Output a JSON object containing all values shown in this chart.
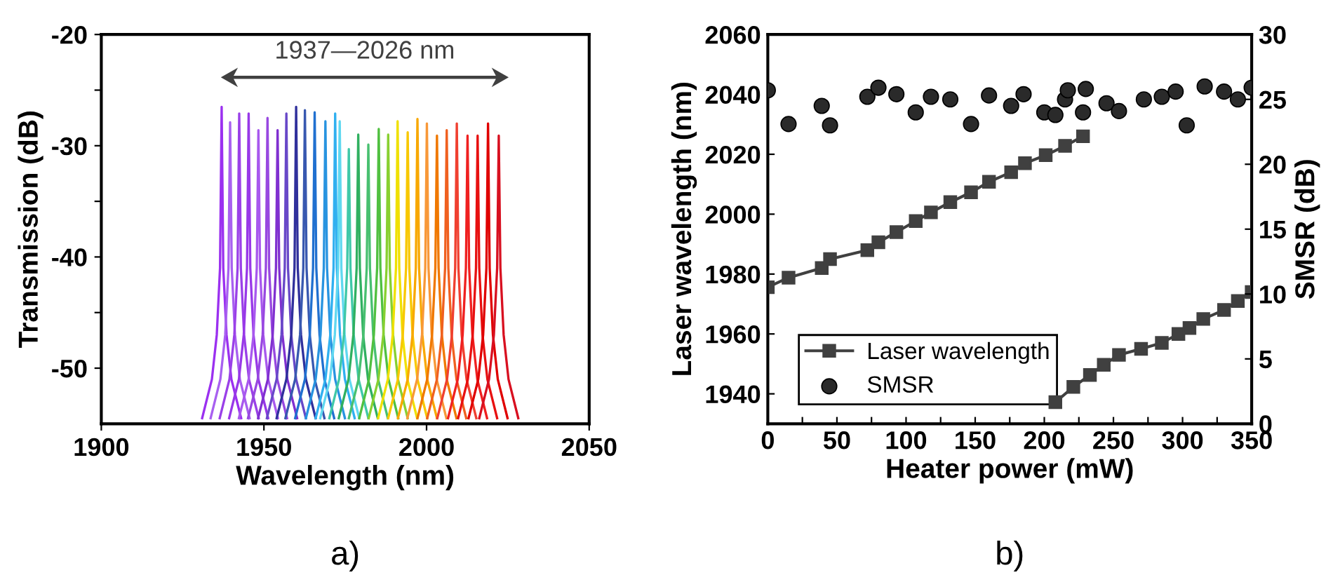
{
  "chart_data": [
    {
      "type": "line",
      "xlabel": "Wavelength (nm)",
      "ylabel": "Transmission (dB)",
      "xlim": [
        1900,
        2050
      ],
      "xticks": [
        1900,
        1950,
        2000,
        2050
      ],
      "ylim": [
        -55,
        -20
      ],
      "yticks": [
        -50,
        {
          "value": -45,
          "label": null
        },
        -40,
        {
          "value": -35,
          "label": null
        },
        -30,
        {
          "value": -25,
          "label": null
        },
        -20
      ],
      "annotations": [
        "1937—2026 nm",
        "a)"
      ],
      "series": [
        {
          "color": "#9b30f0",
          "x": [
            1931,
            1934,
            1935.5,
            1936.5,
            1937,
            1937.5,
            1938.5,
            1940,
            1943
          ],
          "values": [
            -54.5,
            -51,
            -47,
            -41,
            -26.5,
            -41,
            -47,
            -51,
            -54.5
          ]
        },
        {
          "color": "#a860f0",
          "x": [
            1933.6,
            1936.6,
            1938.1,
            1939.1,
            1939.6,
            1940.1,
            1941.1,
            1942.6,
            1945.6
          ],
          "values": [
            -54.5,
            -51,
            -47,
            -41,
            -27.9,
            -41,
            -47,
            -51,
            -54.5
          ]
        },
        {
          "color": "#9a40e8",
          "x": [
            1936.4,
            1939.4,
            1940.9,
            1941.9,
            1942.4,
            1942.9,
            1943.9,
            1945.4,
            1948.4
          ],
          "values": [
            -54.5,
            -51,
            -47,
            -41,
            -27.1,
            -41,
            -47,
            -51,
            -54.5
          ]
        },
        {
          "color": "#9838e8",
          "x": [
            1939.3,
            1942.3,
            1943.8,
            1944.8,
            1945.3,
            1945.8,
            1946.8,
            1948.3,
            1951.3
          ],
          "values": [
            -54.5,
            -51,
            -47,
            -41,
            -27.1,
            -41,
            -47,
            -51,
            -54.5
          ]
        },
        {
          "color": "#a858ee",
          "x": [
            1942.3,
            1945.3,
            1946.8,
            1947.8,
            1948.3,
            1948.8,
            1949.8,
            1951.3,
            1954.3
          ],
          "values": [
            -54.5,
            -51,
            -47,
            -41,
            -28.6,
            -41,
            -47,
            -51,
            -54.5
          ]
        },
        {
          "color": "#9848e0",
          "x": [
            1945.1,
            1948.1,
            1949.6,
            1950.6,
            1951.1,
            1951.6,
            1952.6,
            1954.1,
            1957.1
          ],
          "values": [
            -54.5,
            -51,
            -47,
            -41,
            -27.5,
            -41,
            -47,
            -51,
            -54.5
          ]
        },
        {
          "color": "#8030d0",
          "x": [
            1948.2,
            1951.2,
            1952.7,
            1953.7,
            1954.2,
            1954.7,
            1955.7,
            1957.2,
            1960.2
          ],
          "values": [
            -54.5,
            -51,
            -47,
            -41,
            -28.6,
            -41,
            -47,
            -51,
            -54.5
          ]
        },
        {
          "color": "#6848c8",
          "x": [
            1950.9,
            1953.9,
            1955.4,
            1956.4,
            1956.9,
            1957.4,
            1958.4,
            1959.9,
            1962.9
          ],
          "values": [
            -54.5,
            -51,
            -47,
            -41,
            -27.1,
            -41,
            -47,
            -51,
            -54.5
          ]
        },
        {
          "color": "#30309c",
          "x": [
            1953.9,
            1956.9,
            1958.4,
            1959.4,
            1959.9,
            1960.4,
            1961.4,
            1962.9,
            1965.9
          ],
          "values": [
            -54.5,
            -51,
            -47,
            -41,
            -26.5,
            -41,
            -47,
            -51,
            -54.5
          ]
        },
        {
          "color": "#3858b0",
          "x": [
            1956.6,
            1959.6,
            1961.1,
            1962.1,
            1962.6,
            1963.1,
            1964.1,
            1965.6,
            1968.6
          ],
          "values": [
            -54.5,
            -51,
            -47,
            -41,
            -26.8,
            -41,
            -47,
            -51,
            -54.5
          ]
        },
        {
          "color": "#2070d0",
          "x": [
            1959.6,
            1962.6,
            1964.1,
            1965.1,
            1965.6,
            1966.1,
            1967.1,
            1968.6,
            1971.6
          ],
          "values": [
            -54.5,
            -51,
            -47,
            -41,
            -27.0,
            -41,
            -47,
            -51,
            -54.5
          ]
        },
        {
          "color": "#2894e0",
          "x": [
            1962.9,
            1965.9,
            1967.4,
            1968.4,
            1968.9,
            1969.4,
            1970.4,
            1971.9,
            1974.9
          ],
          "values": [
            -54.5,
            -51,
            -47,
            -41,
            -27.8,
            -41,
            -47,
            -51,
            -54.5
          ]
        },
        {
          "color": "#30b0f0",
          "x": [
            1965.9,
            1968.9,
            1970.4,
            1971.4,
            1971.9,
            1972.4,
            1973.4,
            1974.9,
            1977.9
          ],
          "values": [
            -54.5,
            -51,
            -47,
            -41,
            -27.1,
            -41,
            -47,
            -51,
            -54.5
          ]
        },
        {
          "color": "#60d8f0",
          "x": [
            1967.3,
            1970.3,
            1971.8,
            1972.8,
            1973.3,
            1973.8,
            1974.8,
            1976.3,
            1979.3
          ],
          "values": [
            -54.5,
            -51,
            -47,
            -41,
            -27.8,
            -41,
            -47,
            -51,
            -54.5
          ]
        },
        {
          "color": "#40c8a8",
          "x": [
            1970.1,
            1973.1,
            1974.6,
            1975.6,
            1976.1,
            1976.6,
            1977.6,
            1979.1,
            1982.1
          ],
          "values": [
            -54.5,
            -51,
            -47,
            -41,
            -30.3,
            -41,
            -47,
            -51,
            -54.5
          ]
        },
        {
          "color": "#30b060",
          "x": [
            1973,
            1976,
            1977.5,
            1978.5,
            1979,
            1979.5,
            1980.5,
            1982,
            1985
          ],
          "values": [
            -54.5,
            -51,
            -47,
            -41,
            -29.0,
            -41,
            -47,
            -51,
            -54.5
          ]
        },
        {
          "color": "#48c070",
          "x": [
            1976.1,
            1979.1,
            1980.6,
            1981.6,
            1982.1,
            1982.6,
            1983.6,
            1985.1,
            1988.1
          ],
          "values": [
            -54.5,
            -51,
            -47,
            -41,
            -29.9,
            -41,
            -47,
            -51,
            -54.5
          ]
        },
        {
          "color": "#50c040",
          "x": [
            1979.3,
            1982.3,
            1983.8,
            1984.8,
            1985.3,
            1985.8,
            1986.8,
            1988.3,
            1991.3
          ],
          "values": [
            -54.5,
            -51,
            -47,
            -41,
            -28.5,
            -41,
            -47,
            -51,
            -54.5
          ]
        },
        {
          "color": "#88d030",
          "x": [
            1982.2,
            1985.2,
            1986.7,
            1987.7,
            1988.2,
            1988.7,
            1989.7,
            1991.2,
            1994.2
          ],
          "values": [
            -54.5,
            -51,
            -47,
            -41,
            -29.0,
            -41,
            -47,
            -51,
            -54.5
          ]
        },
        {
          "color": "#f0e000",
          "x": [
            1985.1,
            1988.1,
            1989.6,
            1990.6,
            1991.1,
            1991.6,
            1992.6,
            1994.1,
            1997.1
          ],
          "values": [
            -54.5,
            -51,
            -47,
            -41,
            -27.8,
            -41,
            -47,
            -51,
            -54.5
          ]
        },
        {
          "color": "#f8c800",
          "x": [
            1988.2,
            1991.2,
            1992.7,
            1993.7,
            1994.2,
            1994.7,
            1995.7,
            1997.2,
            2000.2
          ],
          "values": [
            -54.5,
            -51,
            -47,
            -41,
            -28.8,
            -41,
            -47,
            -51,
            -54.5
          ]
        },
        {
          "color": "#f8a800",
          "x": [
            1991.2,
            1994.2,
            1995.7,
            1996.7,
            1997.2,
            1997.7,
            1998.7,
            2000.2,
            2003.2
          ],
          "values": [
            -54.5,
            -51,
            -47,
            -41,
            -27.6,
            -41,
            -47,
            -51,
            -54.5
          ]
        },
        {
          "color": "#f89838",
          "x": [
            1994.1,
            1997.1,
            1998.6,
            1999.6,
            2000.1,
            2000.6,
            2001.6,
            2003.1,
            2006.1
          ],
          "values": [
            -54.5,
            -51,
            -47,
            -41,
            -28.0,
            -41,
            -47,
            -51,
            -54.5
          ]
        },
        {
          "color": "#f07800",
          "x": [
            1997.2,
            2000.2,
            2001.7,
            2002.7,
            2003.2,
            2003.7,
            2004.7,
            2006.2,
            2009.2
          ],
          "values": [
            -54.5,
            -51,
            -47,
            -41,
            -29.1,
            -41,
            -47,
            -51,
            -54.5
          ]
        },
        {
          "color": "#f06020",
          "x": [
            2000.2,
            2003.2,
            2004.7,
            2005.7,
            2006.2,
            2006.7,
            2007.7,
            2009.2,
            2012.2
          ],
          "values": [
            -54.5,
            -51,
            -47,
            -41,
            -28.6,
            -41,
            -47,
            -51,
            -54.5
          ]
        },
        {
          "color": "#f04030",
          "x": [
            2003.3,
            2006.3,
            2007.8,
            2008.8,
            2009.3,
            2009.8,
            2010.8,
            2012.3,
            2015.3
          ],
          "values": [
            -54.5,
            -51,
            -47,
            -41,
            -28.0,
            -41,
            -47,
            -51,
            -54.5
          ]
        },
        {
          "color": "#f02020",
          "x": [
            2006.6,
            2009.6,
            2011.1,
            2012.1,
            2012.6,
            2013.1,
            2014.1,
            2015.6,
            2018.6
          ],
          "values": [
            -54.5,
            -51,
            -47,
            -41,
            -29.1,
            -41,
            -47,
            -51,
            -54.5
          ]
        },
        {
          "color": "#e81010",
          "x": [
            2009.7,
            2012.7,
            2014.2,
            2015.2,
            2015.7,
            2016.2,
            2017.2,
            2018.7,
            2021.7
          ],
          "values": [
            -54.5,
            -51,
            -47,
            -41,
            -29.1,
            -41,
            -47,
            -51,
            -54.5
          ]
        },
        {
          "color": "#e00000",
          "x": [
            2012.9,
            2015.9,
            2017.4,
            2018.4,
            2018.9,
            2019.4,
            2020.4,
            2021.9,
            2024.9
          ],
          "values": [
            -54.5,
            -51,
            -47,
            -41,
            -28.0,
            -41,
            -47,
            -51,
            -54.5
          ]
        },
        {
          "color": "#d81020",
          "x": [
            2016.2,
            2019.2,
            2020.7,
            2021.7,
            2022.2,
            2022.7,
            2023.7,
            2025.2,
            2028.2
          ],
          "values": [
            -54.5,
            -51,
            -47,
            -41,
            -29.1,
            -41,
            -47,
            -51,
            -54.5
          ]
        }
      ]
    },
    {
      "type": "line",
      "xlabel": "Heater power (mW)",
      "ylabel": "Laser wavelength (nm)",
      "y2label": "SMSR (dB)",
      "xlim": [
        0,
        350
      ],
      "xticks": [
        0,
        {
          "value": 25,
          "label": null
        },
        50,
        {
          "value": 75,
          "label": null
        },
        100,
        {
          "value": 125,
          "label": null
        },
        150,
        {
          "value": 175,
          "label": null
        },
        200,
        {
          "value": 225,
          "label": null
        },
        250,
        {
          "value": 275,
          "label": null
        },
        300,
        {
          "value": 325,
          "label": null
        },
        350
      ],
      "ylim": [
        1930,
        2060
      ],
      "yticks": [
        1940,
        1960,
        1980,
        2000,
        2020,
        2040,
        2060
      ],
      "y2lim": [
        0,
        30
      ],
      "y2ticks": [
        0,
        5,
        10,
        15,
        20,
        25,
        30
      ],
      "legend": "bottom left",
      "annotations": [
        "b)"
      ],
      "series": [
        {
          "name": "Laser wavelength",
          "color": "#404040",
          "marker": "square",
          "x": [
            0,
            15,
            39,
            45,
            72,
            80,
            93,
            107,
            118,
            132,
            147,
            160,
            176,
            186,
            201,
            215,
            228,
            null,
            208,
            221,
            233,
            243,
            254,
            270,
            285,
            297,
            305,
            315,
            330,
            340,
            350
          ],
          "values": [
            1975.6,
            1978.8,
            1982,
            1985,
            1988,
            1990.6,
            1994,
            1997.7,
            2000.6,
            2004,
            2007.3,
            2010.8,
            2014,
            2017,
            2019.7,
            2022.8,
            2026,
            null,
            1937.2,
            1942.3,
            1946.3,
            1949.7,
            1953,
            1955,
            1957,
            1960,
            1962,
            1965,
            1968,
            1971,
            1974
          ]
        },
        {
          "name": "SMSR",
          "type": "scatter",
          "axis": "y2",
          "color": "#2a2a2a",
          "marker": "circle",
          "x": [
            0,
            15,
            39,
            45,
            72,
            80,
            93,
            107,
            118,
            132,
            147,
            160,
            176,
            185,
            200,
            208,
            215,
            217,
            228,
            230,
            245,
            254,
            272,
            285,
            295,
            303,
            316,
            330,
            340,
            350
          ],
          "values": [
            25.7,
            23.1,
            24.5,
            23.0,
            25.2,
            25.9,
            25.4,
            24.0,
            25.2,
            25.0,
            23.1,
            25.3,
            24.5,
            25.4,
            24.0,
            23.8,
            25.0,
            25.7,
            24.0,
            25.8,
            24.7,
            24.1,
            25.0,
            25.2,
            25.6,
            23.0,
            26.0,
            25.6,
            25.0,
            25.9
          ]
        }
      ]
    }
  ]
}
